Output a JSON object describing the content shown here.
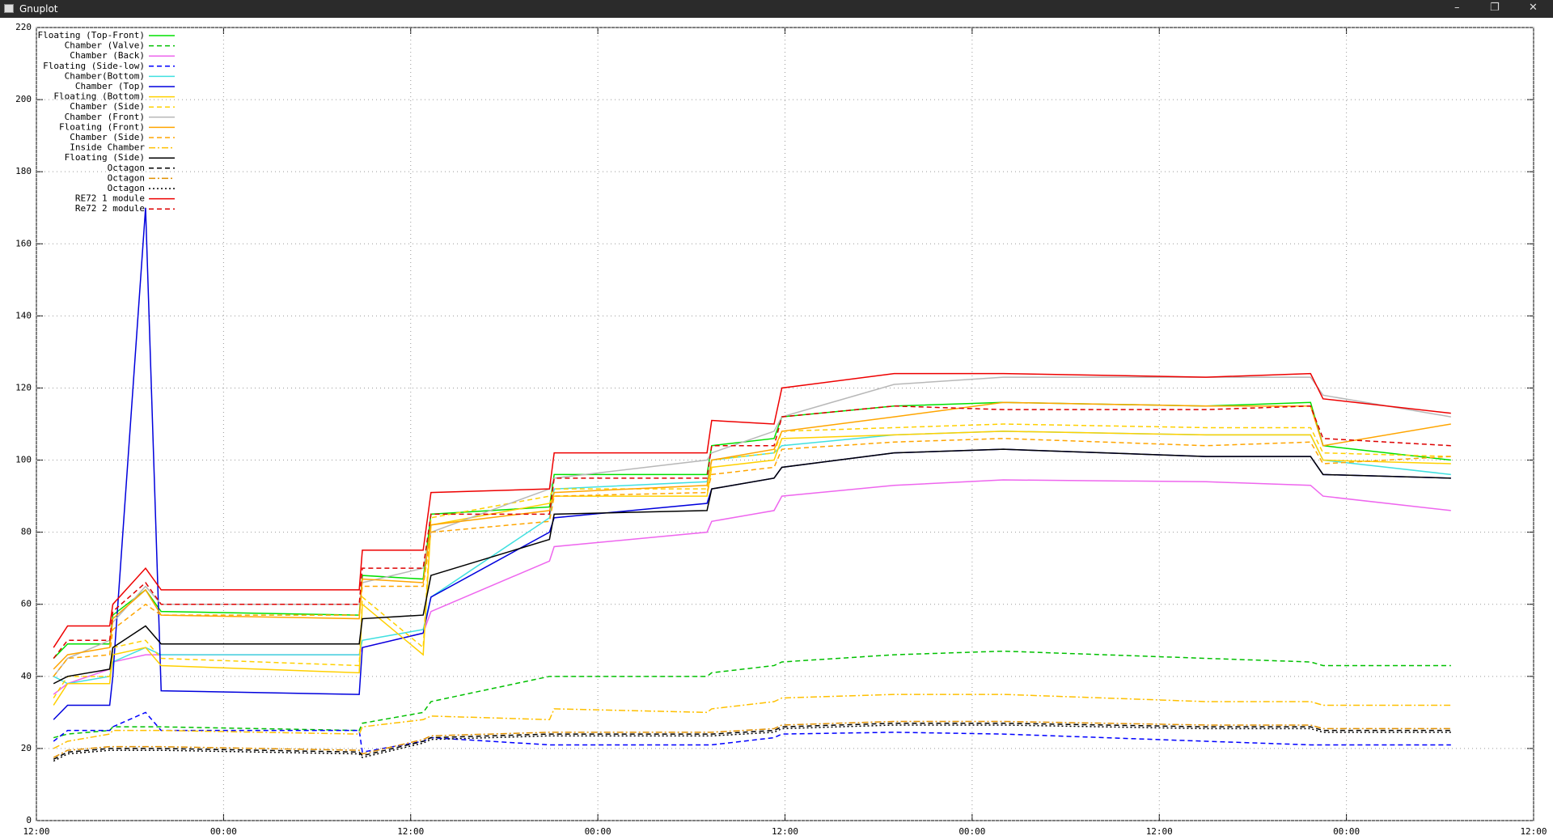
{
  "window": {
    "title": "Gnuplot"
  },
  "chart_data": {
    "type": "line",
    "x": [
      1.1,
      2.0,
      4.7,
      4.9,
      7.0,
      8.0,
      20.7,
      20.9,
      24.8,
      25.3,
      32.9,
      33.2,
      43.0,
      43.3,
      47.3,
      47.8,
      55,
      62,
      75,
      81.7,
      82.5,
      90.7
    ],
    "xlim": [
      0,
      96
    ],
    "xticks": [
      {
        "value": 0,
        "label": "12:00"
      },
      {
        "value": 12,
        "label": "00:00"
      },
      {
        "value": 24,
        "label": "12:00"
      },
      {
        "value": 36,
        "label": "00:00"
      },
      {
        "value": 48,
        "label": "12:00"
      },
      {
        "value": 60,
        "label": "00:00"
      },
      {
        "value": 72,
        "label": "12:00"
      },
      {
        "value": 84,
        "label": "00:00"
      },
      {
        "value": 96,
        "label": "12:00"
      }
    ],
    "ylim": [
      0,
      220
    ],
    "yticks": [
      0,
      20,
      40,
      60,
      80,
      100,
      120,
      140,
      160,
      180,
      200,
      220
    ],
    "grid": true,
    "legend": "top-left",
    "series": [
      {
        "name": "Floating (Top-Front)",
        "color": "#00e000",
        "style": "solid",
        "values": [
          45,
          49,
          49,
          57,
          64,
          58,
          57,
          68,
          67,
          85,
          87,
          96,
          96,
          104,
          106,
          112,
          115,
          116,
          115,
          116,
          104,
          100
        ]
      },
      {
        "name": "Chamber (Valve)",
        "color": "#00c000",
        "style": "dashed",
        "values": [
          23,
          24,
          25,
          26,
          26,
          26,
          25,
          27,
          30,
          33,
          40,
          40,
          40,
          41,
          43,
          44,
          46,
          47,
          45,
          44,
          43,
          43
        ]
      },
      {
        "name": "Chamber (Back)",
        "color": "#ee66ee",
        "style": "solid",
        "values": [
          35,
          38,
          42,
          44,
          46,
          46,
          46,
          48,
          52,
          58,
          72,
          76,
          80,
          83,
          86,
          90,
          93,
          94.5,
          94,
          93,
          90,
          86
        ]
      },
      {
        "name": "Floating (Side-low)",
        "color": "#0000ff",
        "style": "dashed",
        "values": [
          22,
          25,
          25,
          26,
          30,
          25,
          25,
          19,
          22,
          23,
          21,
          21,
          21,
          21,
          23,
          24,
          24.5,
          24,
          22,
          21,
          21,
          21
        ]
      },
      {
        "name": "Chamber(Bottom)",
        "color": "#40e0e0",
        "style": "solid",
        "values": [
          40,
          38,
          40,
          44,
          48,
          46,
          46,
          50,
          53,
          62,
          84,
          92,
          94,
          100,
          102,
          104,
          107,
          108,
          107,
          107,
          100,
          96
        ]
      },
      {
        "name": "Chamber (Top)",
        "color": "#0000dd",
        "style": "solid",
        "values": [
          28,
          32,
          32,
          40,
          170,
          36,
          35,
          48,
          52,
          62,
          80,
          84,
          88,
          92,
          95,
          98,
          102,
          103,
          101,
          101,
          96,
          95
        ]
      },
      {
        "name": "Floating (Bottom)",
        "color": "#ffd000",
        "style": "solid",
        "values": [
          32,
          38,
          38,
          46,
          48,
          43,
          41,
          60,
          46,
          82,
          88,
          90,
          90,
          98,
          100,
          106,
          107,
          108,
          107,
          107,
          100,
          99
        ]
      },
      {
        "name": "Chamber (Side)",
        "color": "#ffd000",
        "style": "dashed",
        "values": [
          34,
          40,
          40,
          48,
          50,
          45,
          43,
          62,
          48,
          84,
          90,
          92,
          92,
          100,
          102,
          108,
          109,
          110,
          109,
          109,
          102,
          101
        ]
      },
      {
        "name": "Chamber (Front)",
        "color": "#b8b8b8",
        "style": "solid",
        "values": [
          40,
          45,
          50,
          55,
          65,
          60,
          60,
          66,
          70,
          80,
          92,
          95,
          100,
          102,
          108,
          112,
          121,
          123,
          123,
          123,
          118,
          112
        ]
      },
      {
        "name": "Floating (Front)",
        "color": "#ffa500",
        "style": "solid",
        "values": [
          42,
          46,
          48,
          56,
          64,
          57,
          56,
          67,
          66,
          82,
          86,
          91,
          93,
          100,
          103,
          108,
          112,
          116,
          115,
          115,
          104,
          110
        ]
      },
      {
        "name": "Chamber (Side)",
        "color": "#ffa500",
        "style": "dashed",
        "values": [
          40,
          45,
          46,
          53,
          60,
          57,
          57,
          65,
          65,
          80,
          83,
          90,
          91,
          96,
          98,
          103,
          105,
          106,
          104,
          105,
          99,
          101
        ]
      },
      {
        "name": "Inside Chamber",
        "color": "#ffc000",
        "style": "dashdot",
        "values": [
          20,
          22,
          24,
          25,
          25,
          25,
          24,
          26,
          28,
          29,
          28,
          31,
          30,
          31,
          33,
          34,
          35,
          35,
          33,
          33,
          32,
          32
        ]
      },
      {
        "name": "Floating (Side)",
        "color": "#000000",
        "style": "solid",
        "values": [
          38,
          40,
          42,
          48,
          54,
          49,
          49,
          56,
          57,
          68,
          78,
          85,
          86,
          92,
          95,
          98,
          102,
          103,
          101,
          101,
          96,
          95
        ]
      },
      {
        "name": "Octagon",
        "color": "#000000",
        "style": "dashed",
        "values": [
          17,
          19,
          20,
          20,
          20,
          20,
          19,
          18,
          22,
          23,
          24,
          24,
          24,
          24,
          25,
          26,
          27,
          27,
          26,
          26,
          25,
          25
        ]
      },
      {
        "name": "Octagon",
        "color": "#e09000",
        "style": "dashdot",
        "values": [
          17.5,
          19.5,
          20.5,
          20.5,
          20.5,
          20.5,
          19.5,
          18.5,
          22.5,
          23.5,
          24.5,
          24.5,
          24.5,
          24.5,
          25.5,
          26.5,
          27.5,
          27.5,
          26.5,
          26.5,
          25.5,
          25.5
        ]
      },
      {
        "name": "Octagon",
        "color": "#000000",
        "style": "dotted",
        "values": [
          16.5,
          18.5,
          19.5,
          19.5,
          19.5,
          19.5,
          18.5,
          17.5,
          21.5,
          22.5,
          23.5,
          23.5,
          23.5,
          23.5,
          24.5,
          25.5,
          26.5,
          26.5,
          25.5,
          25.5,
          24.5,
          24.5
        ]
      },
      {
        "name": "RE72 1 module",
        "color": "#ee0000",
        "style": "solid",
        "values": [
          48,
          54,
          54,
          60,
          70,
          64,
          64,
          75,
          75,
          91,
          92,
          102,
          102,
          111,
          110,
          120,
          124,
          124,
          123,
          124,
          117,
          113
        ]
      },
      {
        "name": "Re72 2 module",
        "color": "#dd0000",
        "style": "dashed",
        "values": [
          45,
          50,
          50,
          58,
          66,
          60,
          60,
          70,
          70,
          85,
          85,
          95,
          95,
          104,
          104,
          112,
          115,
          114,
          114,
          115,
          106,
          104
        ]
      }
    ]
  }
}
